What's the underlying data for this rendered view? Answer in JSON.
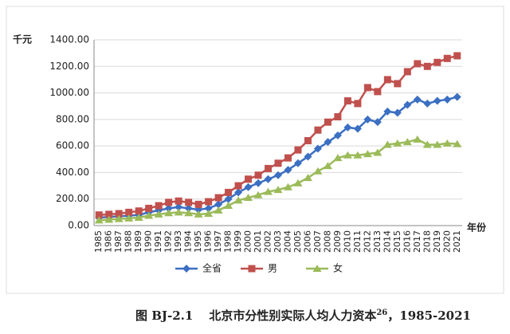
{
  "chart_data": {
    "type": "line",
    "y_unit": "千元",
    "x_label": "年份",
    "caption_label": "图 BJ-2.1",
    "caption_text": "北京市分性别实际人均人力资本",
    "caption_sup": "26",
    "caption_suffix": "，1985-2021",
    "categories": [
      "1985",
      "1986",
      "1987",
      "1988",
      "1989",
      "1990",
      "1991",
      "1992",
      "1993",
      "1994",
      "1995",
      "1996",
      "1997",
      "1998",
      "1999",
      "2000",
      "2001",
      "2002",
      "2003",
      "2004",
      "2005",
      "2006",
      "2007",
      "2008",
      "2009",
      "2010",
      "2011",
      "2012",
      "2013",
      "2014",
      "2015",
      "2016",
      "2017",
      "2018",
      "2019",
      "2020",
      "2021"
    ],
    "series": [
      {
        "name": "全省",
        "color": "#3b6fc2",
        "marker": "diamond",
        "values": [
          60,
          65,
          70,
          75,
          80,
          100,
          115,
          130,
          140,
          130,
          120,
          130,
          160,
          200,
          250,
          290,
          320,
          350,
          380,
          420,
          470,
          520,
          580,
          630,
          680,
          740,
          730,
          800,
          780,
          860,
          850,
          910,
          950,
          920,
          940,
          950,
          970
        ]
      },
      {
        "name": "男",
        "color": "#c0504d",
        "marker": "square",
        "values": [
          80,
          85,
          90,
          100,
          110,
          130,
          150,
          175,
          185,
          175,
          160,
          180,
          210,
          250,
          300,
          350,
          380,
          430,
          470,
          510,
          570,
          640,
          720,
          780,
          820,
          940,
          920,
          1040,
          1010,
          1100,
          1070,
          1160,
          1220,
          1200,
          1230,
          1260,
          1280
        ]
      },
      {
        "name": "女",
        "color": "#9bbb59",
        "marker": "triangle",
        "values": [
          40,
          45,
          50,
          55,
          60,
          75,
          85,
          95,
          100,
          95,
          85,
          90,
          115,
          150,
          190,
          210,
          230,
          255,
          270,
          290,
          320,
          360,
          410,
          450,
          510,
          530,
          530,
          540,
          550,
          610,
          620,
          630,
          650,
          610,
          610,
          620,
          615
        ]
      }
    ],
    "ylim": [
      0,
      1400
    ],
    "yticks": [
      {
        "value": 0,
        "label": "0.00"
      },
      {
        "value": 200,
        "label": "200.00"
      },
      {
        "value": 400,
        "label": "400.00"
      },
      {
        "value": 600,
        "label": "600.00"
      },
      {
        "value": 800,
        "label": "800.00"
      },
      {
        "value": 1000,
        "label": "1000.00"
      },
      {
        "value": 1200,
        "label": "1200.00"
      },
      {
        "value": 1400,
        "label": "1400.00"
      }
    ],
    "grid": true,
    "legend": "bottom"
  }
}
